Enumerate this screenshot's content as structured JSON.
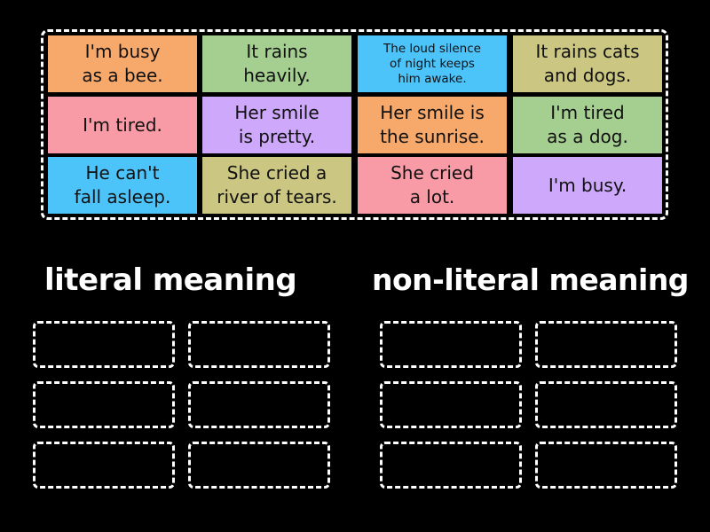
{
  "pool": {
    "cards": [
      {
        "text": "I'm busy\nas a bee.",
        "color": "#f7a96c"
      },
      {
        "text": "It rains\nheavily.",
        "color": "#a5cf91"
      },
      {
        "text": "The loud silence\nof night keeps\nhim awake.",
        "color": "#4cc3f9"
      },
      {
        "text": "It rains cats\nand dogs.",
        "color": "#cbc682"
      },
      {
        "text": "I'm tired.",
        "color": "#f99ba6"
      },
      {
        "text": "Her smile\nis pretty.",
        "color": "#cda8fb"
      },
      {
        "text": "Her smile is\nthe sunrise.",
        "color": "#f7a96c"
      },
      {
        "text": "I'm tired\nas a dog.",
        "color": "#a5cf91"
      },
      {
        "text": "He can't\nfall asleep.",
        "color": "#4cc3f9"
      },
      {
        "text": "She cried a\nriver of tears.",
        "color": "#cbc682"
      },
      {
        "text": "She cried\na lot.",
        "color": "#f99ba6"
      },
      {
        "text": "I'm busy.",
        "color": "#cda8fb"
      }
    ]
  },
  "groups": [
    {
      "heading": "literal meaning",
      "slot_count": 6
    },
    {
      "heading": "non-literal meaning",
      "slot_count": 6
    }
  ]
}
